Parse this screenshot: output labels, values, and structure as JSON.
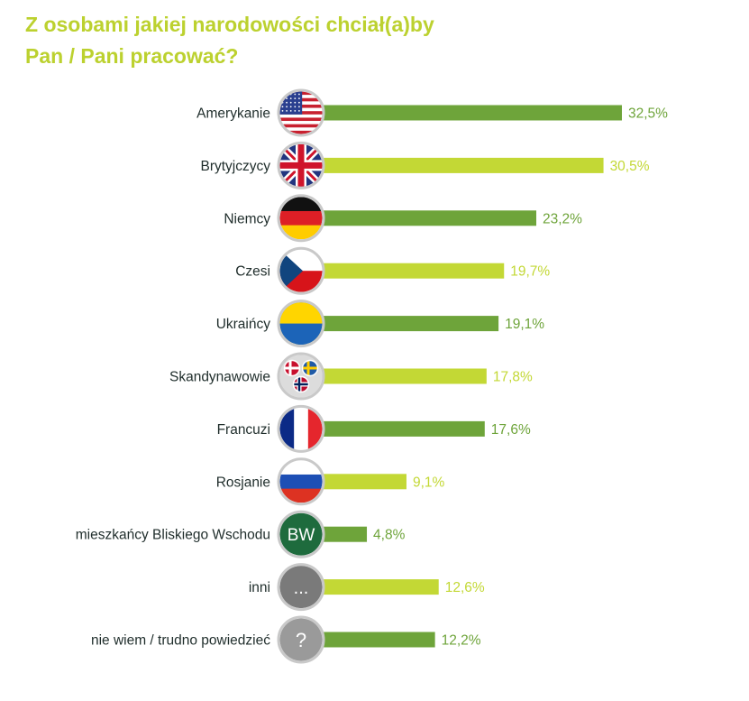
{
  "title_line1": "Z osobami jakiej narodowości chciał(a)by",
  "title_line2": "Pan / Pani pracować?",
  "colors": {
    "title": "#bcd12f",
    "bar_dark": "#6ea43a",
    "bar_light": "#c3d835",
    "label": "#1f2d2b"
  },
  "chart_data": {
    "type": "bar",
    "orientation": "horizontal",
    "title": "Z osobami jakiej narodowości chciał(a)by Pan / Pani pracować?",
    "unit": "%",
    "xlim": [
      0,
      32.5
    ],
    "categories": [
      "Amerykanie",
      "Brytyjczycy",
      "Niemcy",
      "Czesi",
      "Ukraińcy",
      "Skandynawowie",
      "Francuzi",
      "Rosjanie",
      "mieszkańcy Bliskiego Wschodu",
      "inni",
      "nie wiem / trudno powiedzieć"
    ],
    "values": [
      32.5,
      30.5,
      23.2,
      19.7,
      19.1,
      17.8,
      17.6,
      9.1,
      4.8,
      12.6,
      12.2
    ],
    "value_labels": [
      "32,5%",
      "30,5%",
      "23,2%",
      "19,7%",
      "19,1%",
      "17,8%",
      "17,6%",
      "9,1%",
      "4,8%",
      "12,6%",
      "12,2%"
    ],
    "bar_shades": [
      "dark",
      "light",
      "dark",
      "light",
      "dark",
      "light",
      "dark",
      "light",
      "dark",
      "light",
      "dark"
    ],
    "icons": [
      "usa-flag-icon",
      "uk-flag-icon",
      "germany-flag-icon",
      "czech-flag-icon",
      "ukraine-flag-icon",
      "scandinavia-flags-icon",
      "france-flag-icon",
      "russia-flag-icon",
      "middle-east-badge-icon",
      "ellipsis-badge-icon",
      "question-badge-icon"
    ],
    "icon_texts": {
      "middle_east": "BW",
      "other": "...",
      "unknown": "?"
    }
  }
}
